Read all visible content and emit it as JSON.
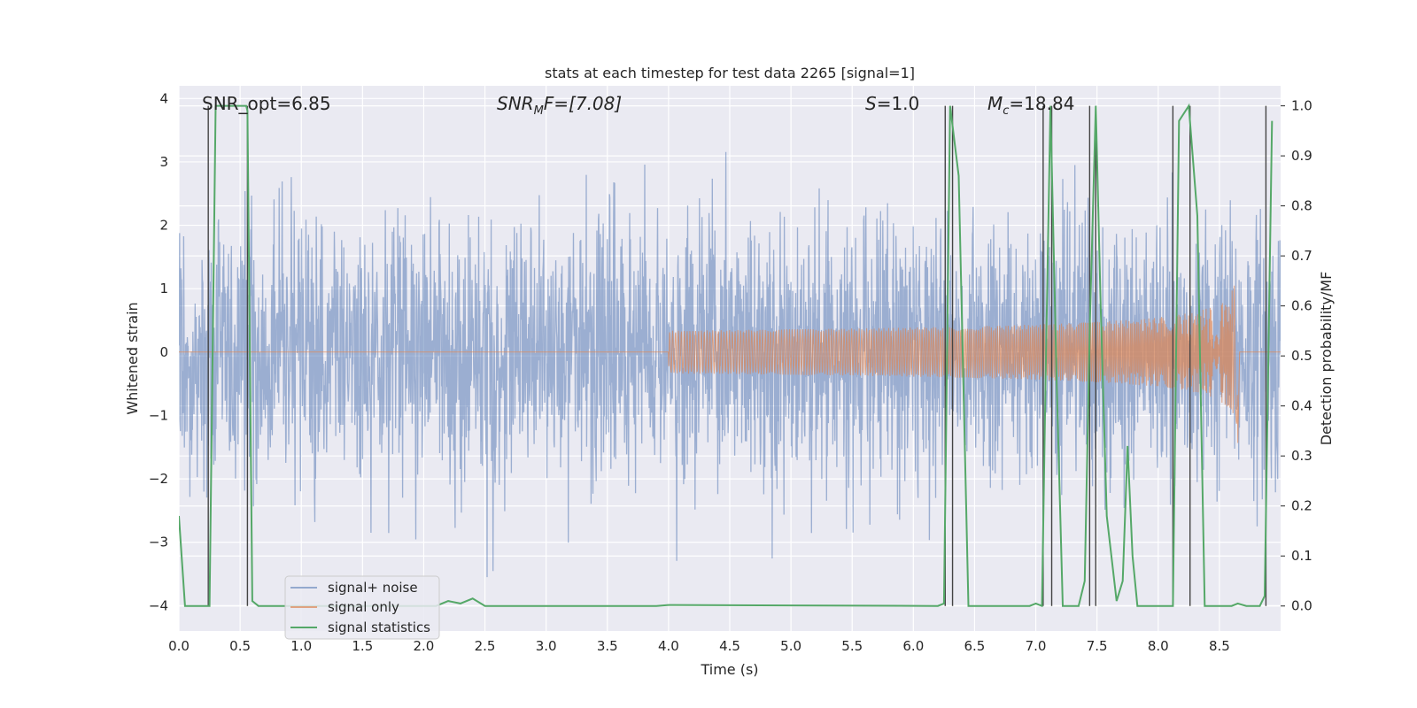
{
  "chart_data": {
    "type": "line",
    "title": "stats at each timestep for test data 2265 [signal=1]",
    "xlabel": "Time (s)",
    "ylabel": "Whitened strain",
    "ylabel_right": "Detection probability/MF",
    "xlim": [
      0.0,
      9.0
    ],
    "ylim": [
      -4.4,
      4.2
    ],
    "ylim_right": [
      -0.05,
      1.04
    ],
    "xticks": [
      0.0,
      0.5,
      1.0,
      1.5,
      2.0,
      2.5,
      3.0,
      3.5,
      4.0,
      4.5,
      5.0,
      5.5,
      6.0,
      6.5,
      7.0,
      7.5,
      8.0,
      8.5
    ],
    "yticks": [
      -4,
      -3,
      -2,
      -1,
      0,
      1,
      2,
      3,
      4
    ],
    "yticks_right": [
      0.0,
      0.1,
      0.2,
      0.3,
      0.4,
      0.5,
      0.6,
      0.7,
      0.8,
      0.9,
      1.0
    ],
    "ytick_labels": [
      "−4",
      "−3",
      "−2",
      "−1",
      "0",
      "1",
      "2",
      "3",
      "4"
    ],
    "annotations": {
      "snr_opt": "SNR_opt=6.85",
      "snr_mf_var": "SNR",
      "snr_mf_sub": "M",
      "snr_mf_rest": "F=[7.08]",
      "s_var": "S",
      "s_rest": "=1.0",
      "mc_var": "M",
      "mc_sub": "c",
      "mc_rest": "=18.84"
    },
    "legend": {
      "position": "lower-left",
      "entries": [
        "signal+ noise",
        "signal only",
        "signal statistics"
      ]
    },
    "series": [
      {
        "name": "signal+ noise",
        "color": "#4c72b0",
        "axis": "left",
        "noise_std": 1.0,
        "typical_range": [
          -3.8,
          3.8
        ]
      },
      {
        "name": "signal only",
        "color": "#dd8452",
        "axis": "left",
        "chirp_start": 4.0,
        "chirp_peak_time": 8.65,
        "peak_amplitude": 1.3,
        "trough_amplitude": -1.5
      },
      {
        "name": "signal statistics",
        "color": "#55a868",
        "axis": "right",
        "points": [
          [
            0.0,
            0.18
          ],
          [
            0.05,
            0.0
          ],
          [
            0.1,
            0.0
          ],
          [
            0.25,
            0.0
          ],
          [
            0.3,
            1.0
          ],
          [
            0.35,
            1.0
          ],
          [
            0.55,
            1.0
          ],
          [
            0.56,
            0.99
          ],
          [
            0.6,
            0.01
          ],
          [
            0.65,
            0.0
          ],
          [
            2.1,
            0.0
          ],
          [
            2.2,
            0.01
          ],
          [
            2.3,
            0.005
          ],
          [
            2.4,
            0.015
          ],
          [
            2.5,
            0.0
          ],
          [
            3.9,
            0.0
          ],
          [
            4.0,
            0.002
          ],
          [
            6.2,
            0.0
          ],
          [
            6.25,
            0.005
          ],
          [
            6.3,
            1.0
          ],
          [
            6.37,
            0.86
          ],
          [
            6.45,
            0.0
          ],
          [
            6.95,
            0.0
          ],
          [
            7.0,
            0.005
          ],
          [
            7.05,
            0.0
          ],
          [
            7.08,
            0.45
          ],
          [
            7.12,
            1.0
          ],
          [
            7.17,
            0.45
          ],
          [
            7.22,
            0.0
          ],
          [
            7.35,
            0.0
          ],
          [
            7.4,
            0.05
          ],
          [
            7.44,
            0.55
          ],
          [
            7.49,
            1.0
          ],
          [
            7.53,
            0.6
          ],
          [
            7.58,
            0.18
          ],
          [
            7.66,
            0.01
          ],
          [
            7.71,
            0.05
          ],
          [
            7.75,
            0.32
          ],
          [
            7.79,
            0.1
          ],
          [
            7.83,
            0.0
          ],
          [
            8.05,
            0.0
          ],
          [
            8.12,
            0.0
          ],
          [
            8.17,
            0.97
          ],
          [
            8.25,
            1.0
          ],
          [
            8.32,
            0.78
          ],
          [
            8.38,
            0.0
          ],
          [
            8.6,
            0.0
          ],
          [
            8.65,
            0.005
          ],
          [
            8.72,
            0.0
          ],
          [
            8.83,
            0.0
          ],
          [
            8.87,
            0.02
          ],
          [
            8.93,
            0.97
          ]
        ]
      }
    ],
    "vertical_markers": [
      0.24,
      0.56,
      6.26,
      6.32,
      7.06,
      7.13,
      7.44,
      7.49,
      8.12,
      8.26,
      8.88
    ]
  }
}
